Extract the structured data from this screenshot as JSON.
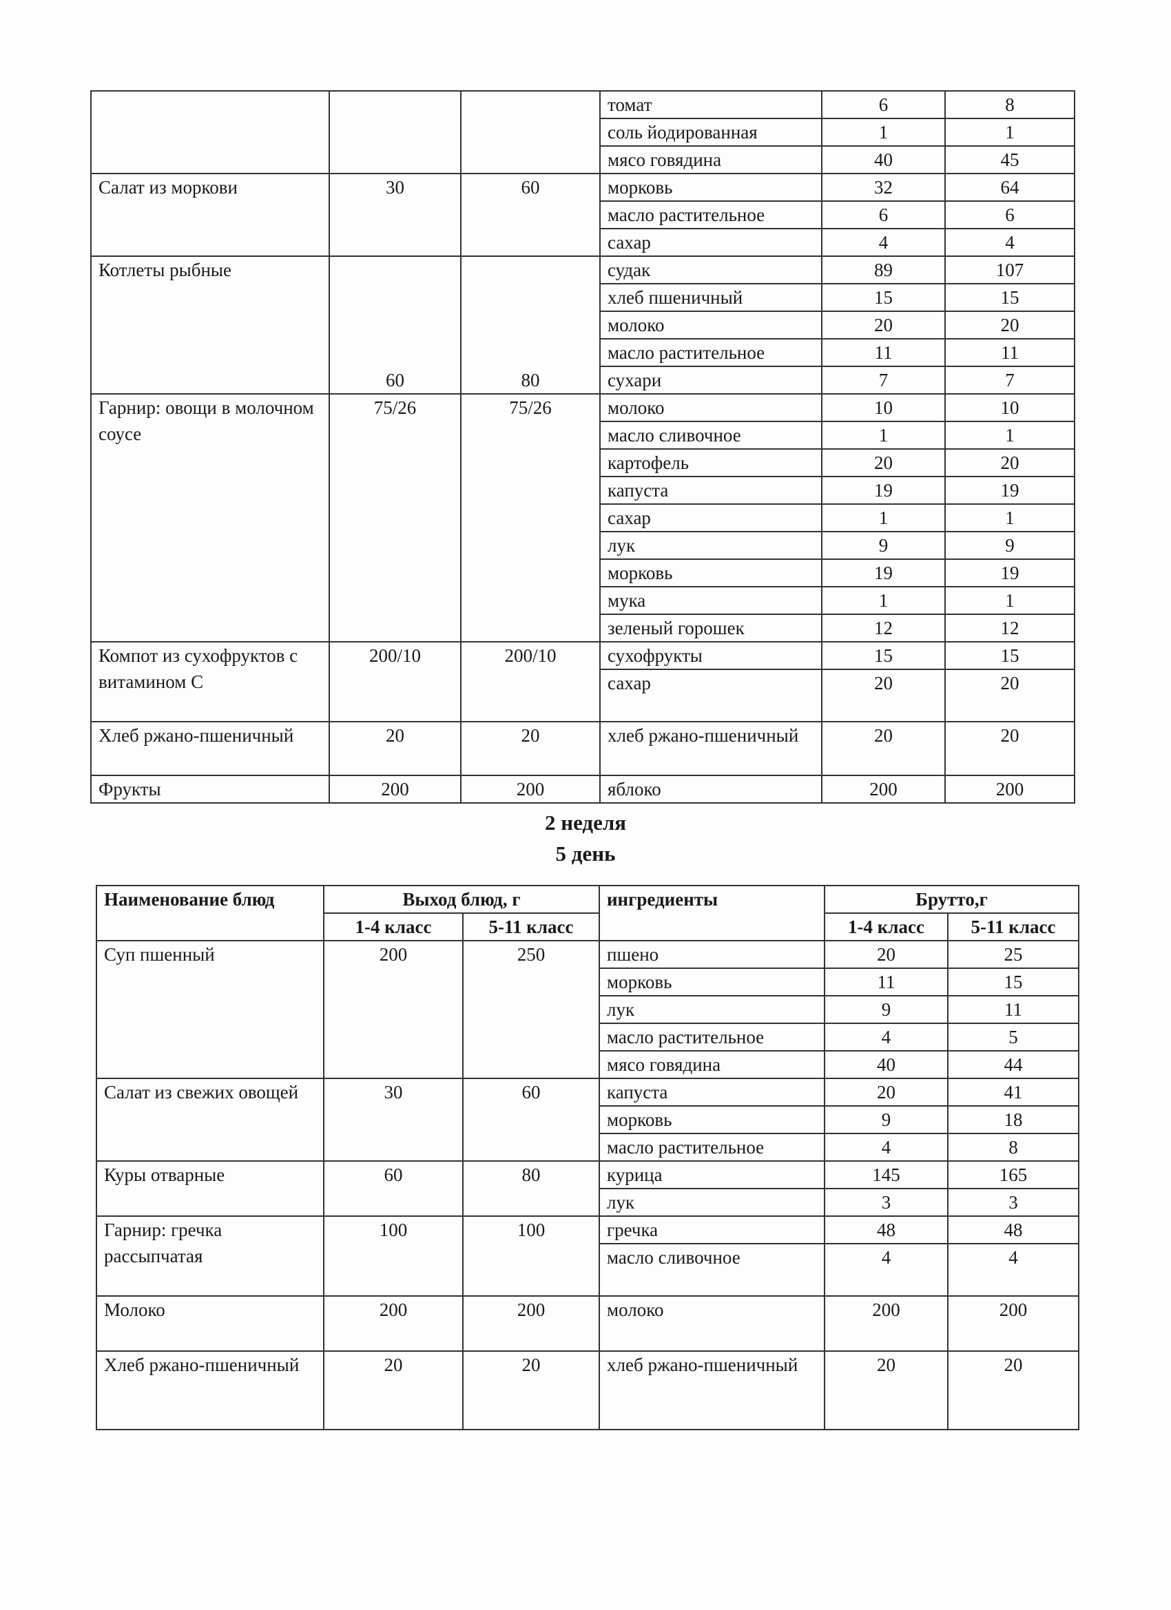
{
  "table1": {
    "dishes": [
      {
        "name": "",
        "out14": "",
        "out511": "",
        "ingredients": [
          {
            "name": "томат",
            "b14": "6",
            "b511": "8"
          },
          {
            "name": "соль йодированная",
            "b14": "1",
            "b511": "1"
          },
          {
            "name": "мясо говядина",
            "b14": "40",
            "b511": "45"
          }
        ]
      },
      {
        "name": "Салат из моркови",
        "out14": "30",
        "out511": "60",
        "ingredients": [
          {
            "name": "морковь",
            "b14": "32",
            "b511": "64"
          },
          {
            "name": "масло растительное",
            "b14": "6",
            "b511": "6"
          },
          {
            "name": "сахар",
            "b14": "4",
            "b511": "4"
          }
        ]
      },
      {
        "name": "Котлеты рыбные",
        "out14": "60",
        "out511": "80",
        "ingredients": [
          {
            "name": "судак",
            "b14": "89",
            "b511": "107"
          },
          {
            "name": "хлеб пшеничный",
            "b14": "15",
            "b511": "15"
          },
          {
            "name": "молоко",
            "b14": "20",
            "b511": "20"
          },
          {
            "name": "масло растительное",
            "b14": "11",
            "b511": "11"
          },
          {
            "name": "сухари",
            "b14": "7",
            "b511": "7"
          }
        ]
      },
      {
        "name": "Гарнир: овощи в молочном соусе",
        "out14": "75/26",
        "out511": "75/26",
        "ingredients": [
          {
            "name": "молоко",
            "b14": "10",
            "b511": "10"
          },
          {
            "name": "масло сливочное",
            "b14": "1",
            "b511": "1"
          },
          {
            "name": "картофель",
            "b14": "20",
            "b511": "20"
          },
          {
            "name": "капуста",
            "b14": "19",
            "b511": "19"
          },
          {
            "name": "сахар",
            "b14": "1",
            "b511": "1"
          },
          {
            "name": "лук",
            "b14": "9",
            "b511": "9"
          },
          {
            "name": "морковь",
            "b14": "19",
            "b511": "19"
          },
          {
            "name": "мука",
            "b14": "1",
            "b511": "1"
          },
          {
            "name": "зеленый горошек",
            "b14": "12",
            "b511": "12"
          }
        ]
      },
      {
        "name": "Компот из сухофруктов с витамином С",
        "out14": "200/10",
        "out511": "200/10",
        "ingredients": [
          {
            "name": "сухофрукты",
            "b14": "15",
            "b511": "15"
          },
          {
            "name": "сахар",
            "b14": "20",
            "b511": "20"
          }
        ]
      },
      {
        "name": "Хлеб ржано-пшеничный",
        "out14": "20",
        "out511": "20",
        "ingredients": [
          {
            "name": "хлеб ржано-пшеничный",
            "b14": "20",
            "b511": "20"
          }
        ]
      },
      {
        "name": "Фрукты",
        "out14": "200",
        "out511": "200",
        "ingredients": [
          {
            "name": "яблоко",
            "b14": "200",
            "b511": "200"
          }
        ]
      }
    ]
  },
  "heading": {
    "week": "2 неделя",
    "day": "5 день"
  },
  "table2": {
    "header": {
      "dish": "Наименование блюд",
      "output": "Выход блюд, г",
      "ingredients": "ингредиенты",
      "gross": "Брутто,г",
      "grade14": "1-4 класс",
      "grade511": "5-11 класс"
    },
    "dishes": [
      {
        "name": "Суп пшенный",
        "out14": "200",
        "out511": "250",
        "ingredients": [
          {
            "name": "пшено",
            "b14": "20",
            "b511": "25"
          },
          {
            "name": "морковь",
            "b14": "11",
            "b511": "15"
          },
          {
            "name": "лук",
            "b14": "9",
            "b511": "11"
          },
          {
            "name": "масло растительное",
            "b14": "4",
            "b511": "5"
          },
          {
            "name": "мясо говядина",
            "b14": "40",
            "b511": "44"
          }
        ]
      },
      {
        "name": "Салат из свежих овощей",
        "out14": "30",
        "out511": "60",
        "ingredients": [
          {
            "name": "капуста",
            "b14": "20",
            "b511": "41"
          },
          {
            "name": "морковь",
            "b14": "9",
            "b511": "18"
          },
          {
            "name": "масло растительное",
            "b14": "4",
            "b511": "8"
          }
        ]
      },
      {
        "name": "Куры отварные",
        "out14": "60",
        "out511": "80",
        "ingredients": [
          {
            "name": "курица",
            "b14": "145",
            "b511": "165"
          },
          {
            "name": "лук",
            "b14": "3",
            "b511": "3"
          }
        ]
      },
      {
        "name": "Гарнир: гречка рассыпчатая",
        "out14": "100",
        "out511": "100",
        "ingredients": [
          {
            "name": "гречка",
            "b14": "48",
            "b511": "48"
          },
          {
            "name": "масло сливочное",
            "b14": "4",
            "b511": "4"
          }
        ]
      },
      {
        "name": "Молоко",
        "out14": "200",
        "out511": "200",
        "ingredients": [
          {
            "name": "молоко",
            "b14": "200",
            "b511": "200"
          }
        ]
      },
      {
        "name": "Хлеб ржано-пшеничный",
        "out14": "20",
        "out511": "20",
        "ingredients": [
          {
            "name": "хлеб ржано-пшеничный",
            "b14": "20",
            "b511": "20"
          }
        ]
      }
    ]
  }
}
